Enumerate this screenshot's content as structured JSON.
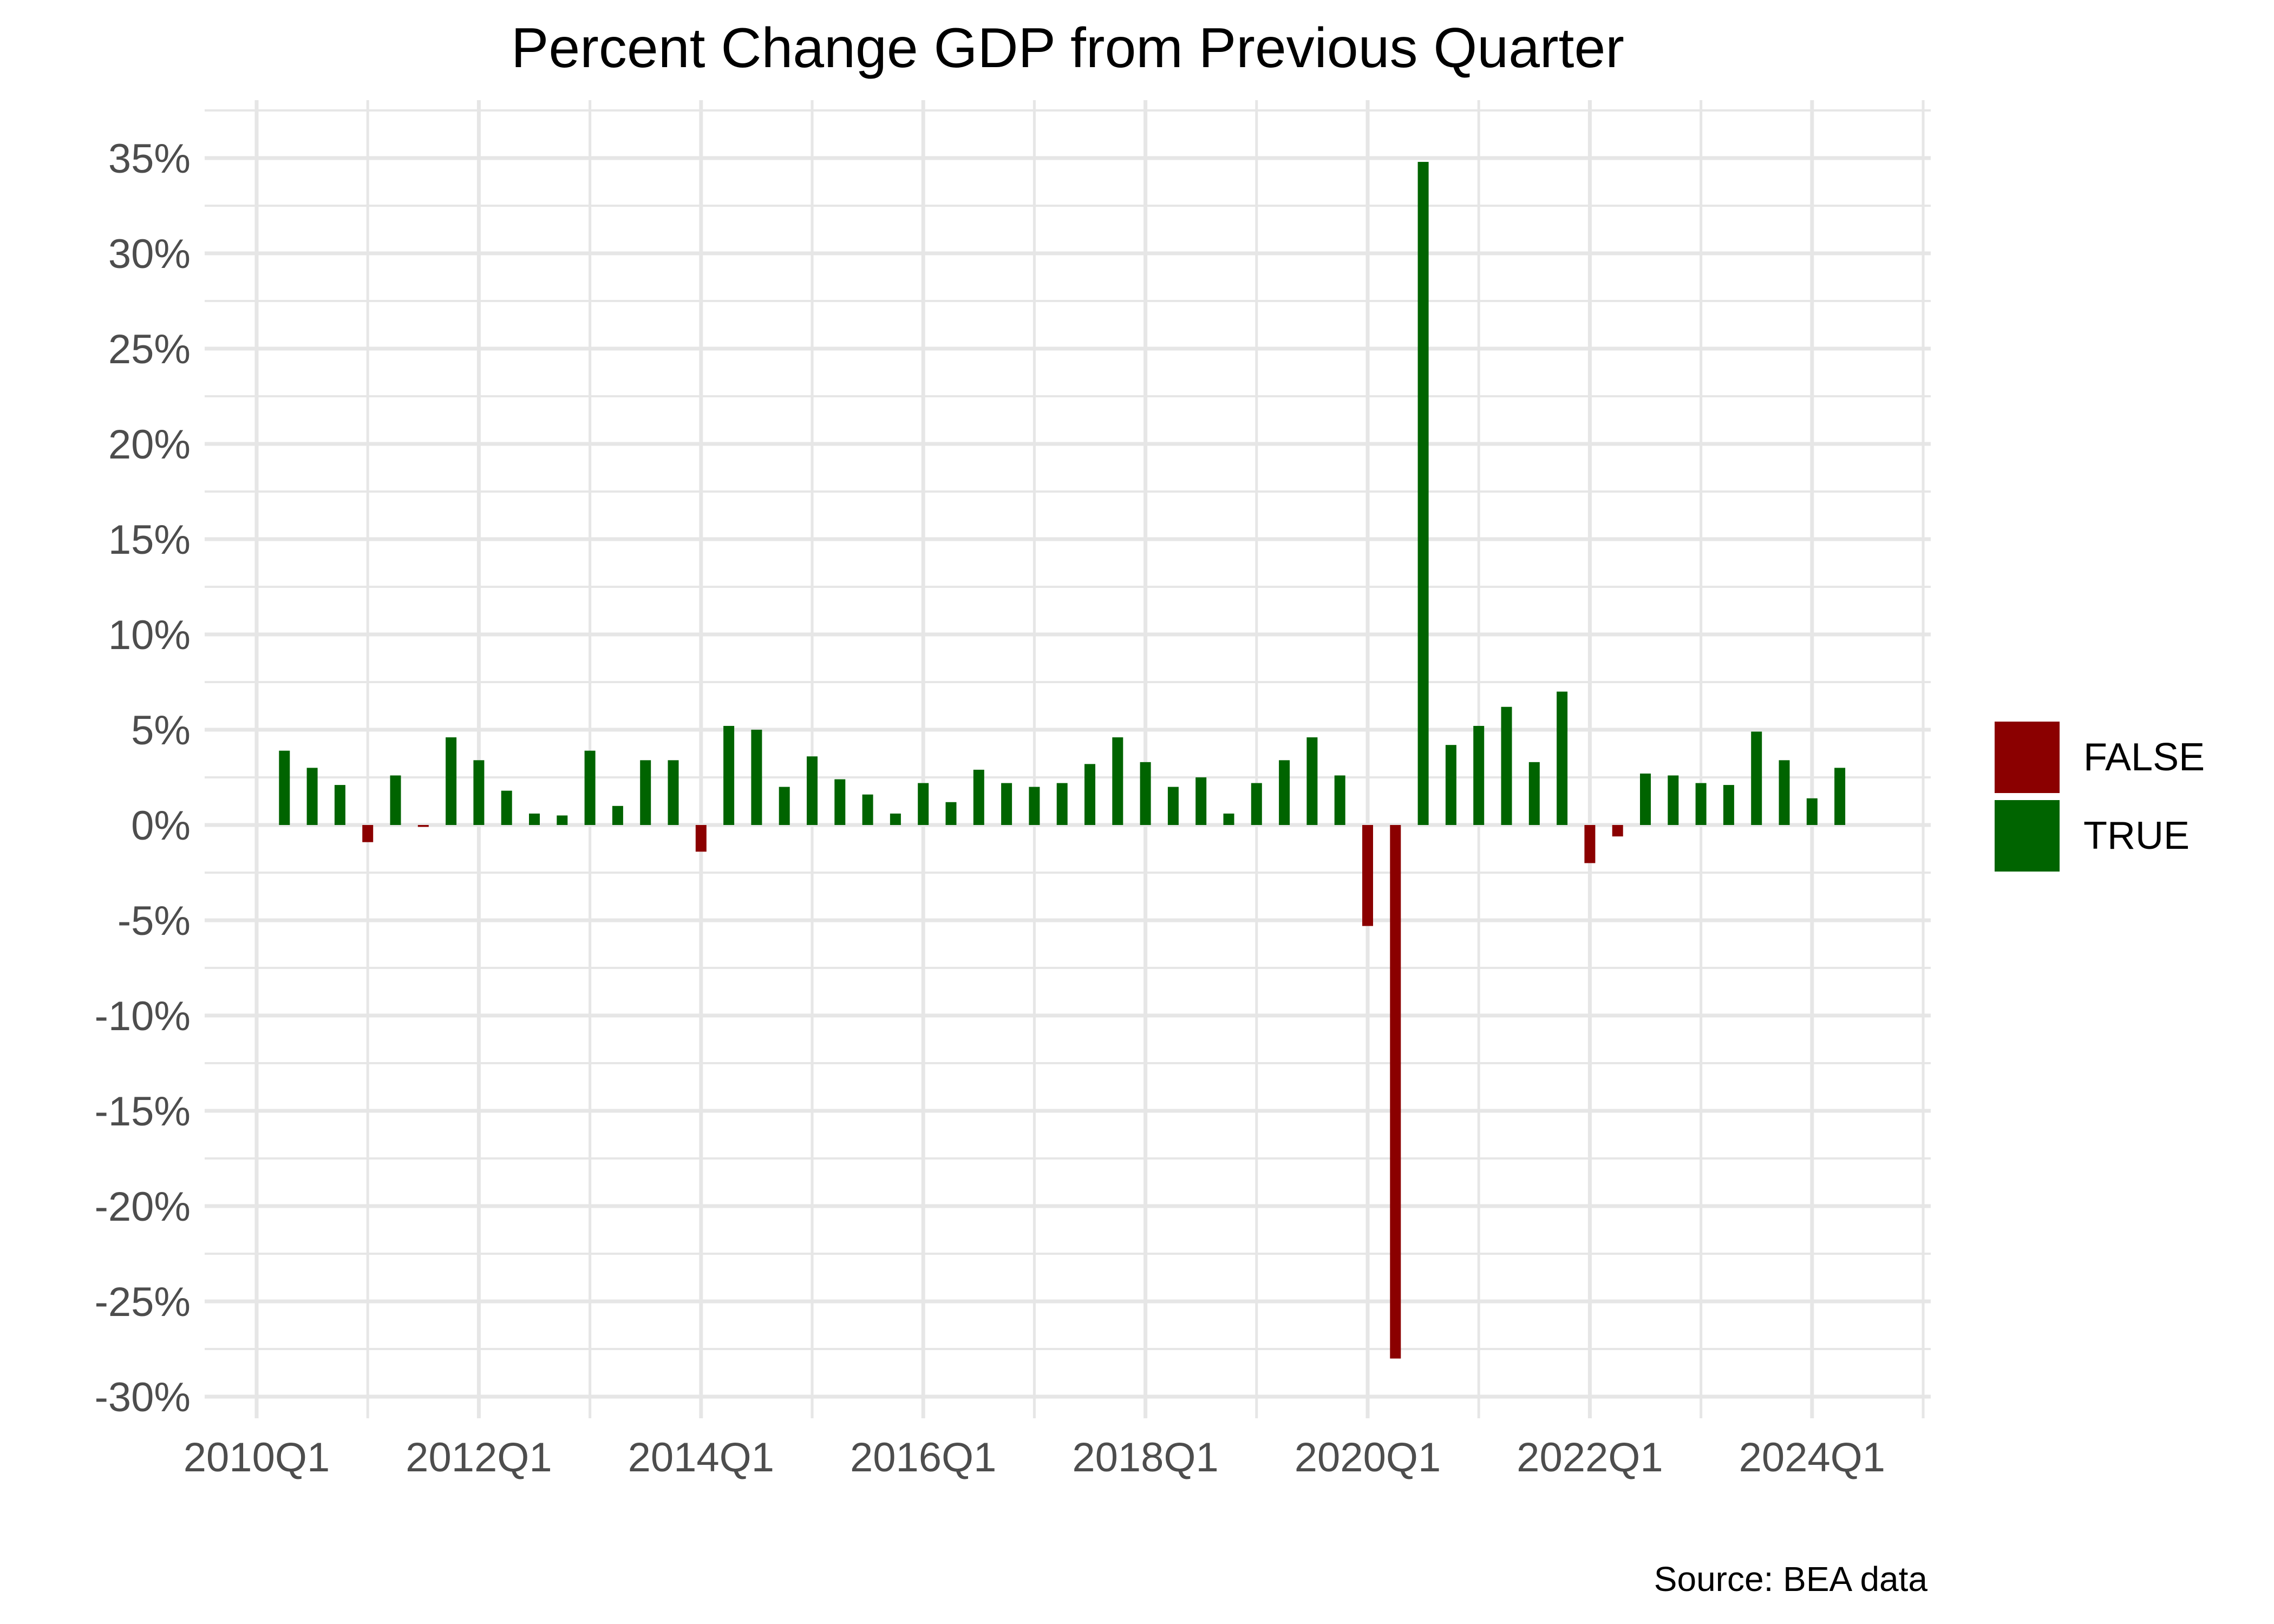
{
  "chart_data": {
    "type": "bar",
    "title": "Percent Change GDP from Previous Quarter",
    "source": "Source: BEA data",
    "x": [
      "2010Q2",
      "2010Q3",
      "2010Q4",
      "2011Q1",
      "2011Q2",
      "2011Q3",
      "2011Q4",
      "2012Q1",
      "2012Q2",
      "2012Q3",
      "2012Q4",
      "2013Q1",
      "2013Q2",
      "2013Q3",
      "2013Q4",
      "2014Q1",
      "2014Q2",
      "2014Q3",
      "2014Q4",
      "2015Q1",
      "2015Q2",
      "2015Q3",
      "2015Q4",
      "2016Q1",
      "2016Q2",
      "2016Q3",
      "2016Q4",
      "2017Q1",
      "2017Q2",
      "2017Q3",
      "2017Q4",
      "2018Q1",
      "2018Q2",
      "2018Q3",
      "2018Q4",
      "2019Q1",
      "2019Q2",
      "2019Q3",
      "2019Q4",
      "2020Q1",
      "2020Q2",
      "2020Q3",
      "2020Q4",
      "2021Q1",
      "2021Q2",
      "2021Q3",
      "2021Q4",
      "2022Q1",
      "2022Q2",
      "2022Q3",
      "2022Q4",
      "2023Q1",
      "2023Q2",
      "2023Q3",
      "2023Q4",
      "2024Q1",
      "2024Q2"
    ],
    "values": [
      3.9,
      3.0,
      2.1,
      -0.9,
      2.6,
      -0.1,
      4.6,
      3.4,
      1.8,
      0.6,
      0.5,
      3.9,
      1.0,
      3.4,
      3.4,
      -1.4,
      5.2,
      5.0,
      2.0,
      3.6,
      2.4,
      1.6,
      0.6,
      2.2,
      1.2,
      2.9,
      2.2,
      2.0,
      2.2,
      3.2,
      4.6,
      3.3,
      2.0,
      2.5,
      0.6,
      2.2,
      3.4,
      4.6,
      2.6,
      -5.3,
      -28.0,
      34.8,
      4.2,
      5.2,
      6.2,
      3.3,
      7.0,
      -2.0,
      -0.6,
      2.7,
      2.6,
      2.2,
      2.1,
      4.9,
      3.4,
      1.4,
      3.0
    ],
    "xlabel": "",
    "ylabel": "",
    "axis_range_y": [
      -30,
      37.5
    ],
    "yticks": [
      {
        "value": 35,
        "label": "35%"
      },
      {
        "value": 30,
        "label": "30%"
      },
      {
        "value": 25,
        "label": "25%"
      },
      {
        "value": 20,
        "label": "20%"
      },
      {
        "value": 15,
        "label": "15%"
      },
      {
        "value": 10,
        "label": "10%"
      },
      {
        "value": 5,
        "label": "5%"
      },
      {
        "value": 0,
        "label": "0%"
      },
      {
        "value": -5,
        "label": "-5%"
      },
      {
        "value": -10,
        "label": "-10%"
      },
      {
        "value": -15,
        "label": "-15%"
      },
      {
        "value": -20,
        "label": "-20%"
      },
      {
        "value": -25,
        "label": "-25%"
      },
      {
        "value": -30,
        "label": "-30%"
      }
    ],
    "xticks": [
      "2010Q1",
      "2012Q1",
      "2014Q1",
      "2016Q1",
      "2018Q1",
      "2020Q1",
      "2022Q1",
      "2024Q1"
    ],
    "grid": true,
    "legend_position": "right",
    "legend": [
      {
        "label": "FALSE",
        "color": "#8B0000"
      },
      {
        "label": "TRUE",
        "color": "#006400"
      }
    ],
    "colors": {
      "positive_bar": "#006400",
      "negative_bar": "#8B0000",
      "gridline": "#E6E6E6",
      "axis_text": "#4D4D4D",
      "background": "#FFFFFF"
    }
  }
}
